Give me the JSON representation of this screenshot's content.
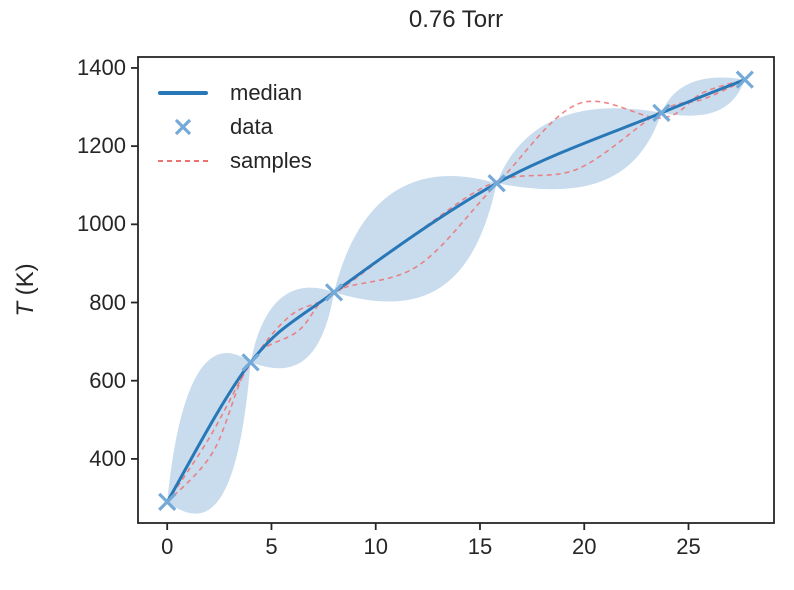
{
  "title": "0.76 Torr",
  "ylabel": {
    "italic": "T",
    "rest": " (K)"
  },
  "chart_data": {
    "type": "line",
    "title": "0.76 Torr",
    "xlabel": "",
    "ylabel": "T (K)",
    "xlim": [
      -1.4,
      29.1
    ],
    "ylim": [
      236,
      1428
    ],
    "xticks": [
      0,
      5,
      10,
      15,
      20,
      25
    ],
    "yticks": [
      400,
      600,
      800,
      1000,
      1200,
      1400
    ],
    "grid": false,
    "legend": {
      "location": "upper left",
      "frame": false,
      "entries": [
        "median",
        "data",
        "samples"
      ]
    },
    "colors": {
      "median": "#2878b8",
      "data_marker": "#74a9d8",
      "samples": "#ee7172",
      "band": "#c9dcee",
      "axes": "#262626"
    },
    "series": [
      {
        "name": "median",
        "type": "line",
        "color": "#2878b8",
        "x": [
          0,
          4,
          8,
          15.8,
          23.7,
          27.7
        ],
        "y": [
          290,
          647,
          826,
          1105,
          1285,
          1370
        ]
      },
      {
        "name": "data",
        "type": "scatter",
        "marker": "x",
        "color": "#74a9d8",
        "x": [
          0,
          4,
          8,
          15.8,
          23.7,
          27.7
        ],
        "y": [
          290,
          647,
          826,
          1105,
          1285,
          1370
        ]
      },
      {
        "name": "sample-1",
        "type": "line",
        "style": "dashed",
        "color": "#ee7172",
        "x": [
          0,
          2.2,
          4,
          6.3,
          8,
          12,
          15.8,
          19.7,
          23.7,
          25.7,
          27.7
        ],
        "y": [
          290,
          418,
          650,
          728,
          828,
          893,
          1103,
          1308,
          1272,
          1337,
          1370
        ]
      },
      {
        "name": "sample-2",
        "type": "line",
        "style": "dashed",
        "color": "#ee7172",
        "x": [
          0,
          2,
          4,
          5.9,
          8,
          12,
          15.8,
          19.7,
          23.7,
          25.7,
          27.7
        ],
        "y": [
          290,
          452,
          644,
          766,
          822,
          980,
          1110,
          1142,
          1290,
          1320,
          1368
        ]
      },
      {
        "name": "uncertainty-band",
        "type": "band",
        "color": "#c9dcee",
        "pinch_points_x": [
          0,
          4,
          8,
          15.8,
          23.7,
          27.7
        ],
        "segments": [
          {
            "x_range": [
              0,
              4
            ],
            "upper_peak": 655,
            "lower_min": 400
          },
          {
            "x_range": [
              4,
              8
            ],
            "upper_peak": 845,
            "lower_min": 610
          },
          {
            "x_range": [
              8,
              15.8
            ],
            "upper_peak": 1112,
            "lower_min": 800
          },
          {
            "x_range": [
              15.8,
              23.7
            ],
            "upper_peak": 1295,
            "lower_min": 1048
          },
          {
            "x_range": [
              23.7,
              27.7
            ],
            "upper_peak": 1378,
            "lower_min": 1272
          }
        ]
      }
    ]
  }
}
